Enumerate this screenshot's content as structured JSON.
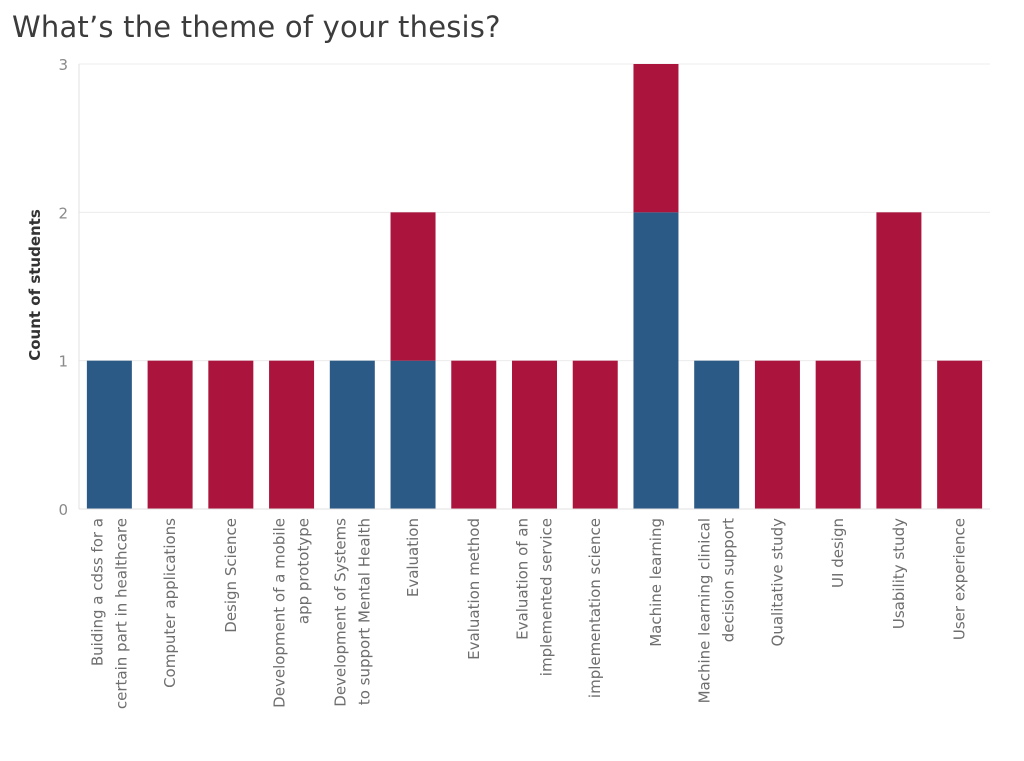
{
  "chart_data": {
    "type": "bar",
    "stacked": true,
    "title": "What’s the theme of your thesis?",
    "ylabel": "Count of students",
    "xlabel": "",
    "ylim": [
      0,
      3
    ],
    "yticks": [
      0,
      1,
      2,
      3
    ],
    "grid": true,
    "categories": [
      "Buiding a cdss for a certain part in healthcare",
      "Computer applications",
      "Design Science",
      "Development of a mobile app prototype",
      "Development of Systems to support Mental Health",
      "Evaluation",
      "Evaluation method",
      "Evaluation of an implemented service",
      "implementation science",
      "Machine learning",
      "Machine learning clinical decision support",
      "Qualitative study",
      "UI design",
      "Usability study",
      "User experience"
    ],
    "category_lines": [
      [
        "Buiding a cdss for a",
        "certain part in healthcare"
      ],
      [
        "Computer applications"
      ],
      [
        "Design Science"
      ],
      [
        "Development of a mobile",
        "app prototype"
      ],
      [
        "Development of Systems",
        "to support Mental Health"
      ],
      [
        "Evaluation"
      ],
      [
        "Evaluation method"
      ],
      [
        "Evaluation of an",
        "implemented service"
      ],
      [
        "implementation science"
      ],
      [
        "Machine learning"
      ],
      [
        "Machine learning clinical",
        "decision support"
      ],
      [
        "Qualitative study"
      ],
      [
        "UI design"
      ],
      [
        "Usability study"
      ],
      [
        "User experience"
      ]
    ],
    "series": [
      {
        "color": "#2b5a87",
        "values": [
          1,
          0,
          0,
          0,
          1,
          1,
          0,
          0,
          0,
          2,
          1,
          0,
          0,
          0,
          0
        ]
      },
      {
        "color": "#ab143c",
        "values": [
          0,
          1,
          1,
          1,
          0,
          1,
          1,
          1,
          1,
          1,
          0,
          1,
          1,
          2,
          1
        ]
      }
    ],
    "colors": {
      "grid": "#ececec",
      "axis": "#e0e0e0"
    }
  }
}
